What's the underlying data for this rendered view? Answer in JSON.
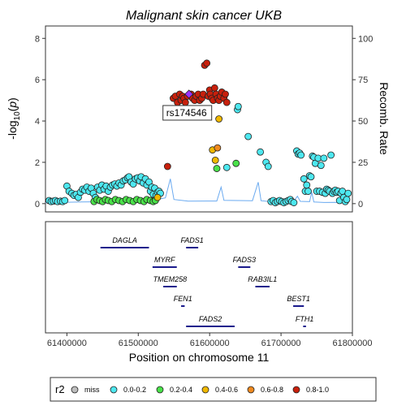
{
  "chart_data": {
    "type": "scatter",
    "title": "Malignant skin cancer UKB",
    "y_left_label": "-log10(p)",
    "y_right_label": "Recomb. Rate",
    "xlabel": "Position on chromosome 11",
    "xlim": [
      61370000,
      61800000
    ],
    "ylim": [
      -0.4,
      8.6
    ],
    "y_left_ticks": [
      "0",
      "2",
      "4",
      "6",
      "8"
    ],
    "y_right_ticks": [
      "0",
      "25",
      "50",
      "75",
      "100"
    ],
    "x_ticks": [
      "61400000",
      "61500000",
      "61600000",
      "61700000",
      "61800000"
    ],
    "lead_snp": {
      "label": "rs174546",
      "x": 61571000,
      "y": 5.3
    },
    "r2_colors": {
      "miss": "#bdbdbd",
      "0.0-0.2": "#4de8f0",
      "0.2-0.4": "#4ae24a",
      "0.4-0.6": "#f0b800",
      "0.6-0.8": "#f08a20",
      "0.8-1.0": "#c8200c",
      "lead": "#9b30ff"
    },
    "series": [
      {
        "name": "0.8-1.0",
        "points": [
          [
            61541000,
            1.8
          ],
          [
            61549000,
            5.1
          ],
          [
            61552000,
            5.2
          ],
          [
            61555000,
            4.9
          ],
          [
            61558000,
            5.3
          ],
          [
            61560000,
            5.0
          ],
          [
            61562000,
            5.2
          ],
          [
            61564000,
            5.1
          ],
          [
            61566000,
            4.9
          ],
          [
            61569000,
            5.2
          ],
          [
            61574000,
            5.3
          ],
          [
            61576000,
            5.1
          ],
          [
            61579000,
            5.0
          ],
          [
            61581000,
            5.2
          ],
          [
            61584000,
            5.3
          ],
          [
            61586000,
            5.0
          ],
          [
            61589000,
            5.1
          ],
          [
            61591000,
            5.3
          ],
          [
            61593000,
            6.7
          ],
          [
            61596000,
            6.8
          ],
          [
            61598000,
            5.2
          ],
          [
            61600000,
            5.5
          ],
          [
            61601000,
            5.3
          ],
          [
            61603000,
            5.1
          ],
          [
            61605000,
            5.0
          ],
          [
            61607000,
            5.6
          ],
          [
            61609000,
            5.3
          ],
          [
            61611000,
            5.1
          ],
          [
            61613000,
            5.0
          ],
          [
            61615000,
            5.2
          ],
          [
            61617000,
            5.4
          ],
          [
            61620000,
            5.1
          ],
          [
            61622000,
            5.3
          ],
          [
            61624000,
            4.9
          ]
        ]
      },
      {
        "name": "0.6-0.8",
        "points": [
          [
            61611000,
            2.7
          ]
        ]
      },
      {
        "name": "0.4-0.6",
        "points": [
          [
            61604000,
            2.6
          ],
          [
            61608000,
            2.1
          ],
          [
            61613000,
            4.1
          ],
          [
            61527000,
            0.3
          ]
        ]
      },
      {
        "name": "0.2-0.4",
        "points": [
          [
            61438000,
            0.1
          ],
          [
            61442000,
            0.2
          ],
          [
            61446000,
            0.15
          ],
          [
            61450000,
            0.1
          ],
          [
            61454000,
            0.2
          ],
          [
            61458000,
            0.15
          ],
          [
            61463000,
            0.1
          ],
          [
            61468000,
            0.2
          ],
          [
            61473000,
            0.15
          ],
          [
            61478000,
            0.1
          ],
          [
            61483000,
            0.2
          ],
          [
            61488000,
            0.15
          ],
          [
            61493000,
            0.1
          ],
          [
            61498000,
            0.2
          ],
          [
            61503000,
            0.15
          ],
          [
            61508000,
            0.1
          ],
          [
            61512000,
            0.2
          ],
          [
            61517000,
            0.15
          ],
          [
            61521000,
            0.1
          ],
          [
            61524000,
            0.15
          ],
          [
            61637000,
            1.95
          ],
          [
            61610000,
            1.7
          ]
        ]
      },
      {
        "name": "0.0-0.2",
        "points": [
          [
            61375000,
            0.15
          ],
          [
            61378000,
            0.1
          ],
          [
            61381000,
            0.12
          ],
          [
            61384000,
            0.15
          ],
          [
            61387000,
            0.1
          ],
          [
            61391000,
            0.12
          ],
          [
            61394000,
            0.1
          ],
          [
            61397000,
            0.15
          ],
          [
            61400000,
            0.85
          ],
          [
            61403000,
            0.6
          ],
          [
            61407000,
            0.5
          ],
          [
            61410000,
            0.4
          ],
          [
            61413000,
            0.45
          ],
          [
            61416000,
            0.3
          ],
          [
            61419000,
            0.55
          ],
          [
            61422000,
            0.7
          ],
          [
            61425000,
            0.65
          ],
          [
            61428000,
            0.8
          ],
          [
            61431000,
            0.6
          ],
          [
            61434000,
            0.75
          ],
          [
            61437000,
            0.5
          ],
          [
            61440000,
            0.3
          ],
          [
            61443000,
            0.8
          ],
          [
            61446000,
            0.65
          ],
          [
            61449000,
            0.9
          ],
          [
            61452000,
            0.7
          ],
          [
            61455000,
            0.85
          ],
          [
            61458000,
            0.6
          ],
          [
            61461000,
            0.8
          ],
          [
            61464000,
            0.9
          ],
          [
            61467000,
            0.95
          ],
          [
            61470000,
            0.85
          ],
          [
            61473000,
            1.0
          ],
          [
            61476000,
            0.9
          ],
          [
            61479000,
            1.1
          ],
          [
            61482000,
            1.15
          ],
          [
            61485000,
            1.25
          ],
          [
            61487000,
            1.3
          ],
          [
            61490000,
            1.05
          ],
          [
            61493000,
            0.95
          ],
          [
            61496000,
            1.2
          ],
          [
            61499000,
            1.25
          ],
          [
            61502000,
            1.1
          ],
          [
            61504000,
            1.3
          ],
          [
            61507000,
            1.0
          ],
          [
            61510000,
            1.2
          ],
          [
            61512000,
            0.9
          ],
          [
            61515000,
            1.05
          ],
          [
            61517000,
            0.6
          ],
          [
            61519000,
            0.8
          ],
          [
            61521000,
            0.45
          ],
          [
            61523000,
            0.75
          ],
          [
            61525000,
            0.4
          ],
          [
            61527000,
            0.55
          ],
          [
            61529000,
            0.6
          ],
          [
            61531000,
            0.5
          ],
          [
            61624000,
            1.75
          ],
          [
            61639000,
            4.55
          ],
          [
            61640000,
            4.7
          ],
          [
            61654000,
            3.25
          ],
          [
            61671000,
            2.5
          ],
          [
            61679000,
            2.0
          ],
          [
            61682000,
            1.8
          ],
          [
            61686000,
            0.1
          ],
          [
            61689000,
            0.15
          ],
          [
            61692000,
            0.05
          ],
          [
            61695000,
            0.1
          ],
          [
            61698000,
            0.15
          ],
          [
            61701000,
            0.1
          ],
          [
            61704000,
            0.05
          ],
          [
            61707000,
            0.1
          ],
          [
            61710000,
            0.15
          ],
          [
            61713000,
            0.2
          ],
          [
            61715000,
            0.1
          ],
          [
            61718000,
            0.05
          ],
          [
            61722000,
            2.55
          ],
          [
            61724000,
            2.4
          ],
          [
            61726000,
            2.45
          ],
          [
            61728000,
            2.35
          ],
          [
            61732000,
            1.2
          ],
          [
            61734000,
            0.6
          ],
          [
            61736000,
            0.9
          ],
          [
            61738000,
            0.6
          ],
          [
            61740000,
            1.35
          ],
          [
            61742000,
            1.3
          ],
          [
            61744000,
            2.3
          ],
          [
            61746000,
            2.25
          ],
          [
            61748000,
            1.95
          ],
          [
            61750000,
            0.6
          ],
          [
            61752000,
            2.2
          ],
          [
            61754000,
            0.6
          ],
          [
            61756000,
            1.85
          ],
          [
            61758000,
            0.55
          ],
          [
            61760000,
            2.2
          ],
          [
            61762000,
            0.5
          ],
          [
            61764000,
            0.7
          ],
          [
            61766000,
            0.65
          ],
          [
            61768000,
            0.6
          ],
          [
            61770000,
            2.35
          ],
          [
            61772000,
            0.5
          ],
          [
            61774000,
            0.6
          ],
          [
            61776000,
            0.65
          ],
          [
            61778000,
            0.55
          ],
          [
            61780000,
            0.6
          ],
          [
            61782000,
            0.15
          ],
          [
            61784000,
            0.5
          ],
          [
            61786000,
            0.6
          ],
          [
            61788000,
            0.3
          ],
          [
            61790000,
            0.1
          ],
          [
            61792000,
            0.2
          ],
          [
            61794000,
            0.5
          ]
        ]
      }
    ],
    "recomb_rate": [
      [
        61370000,
        0.5
      ],
      [
        61395000,
        0.8
      ],
      [
        61420000,
        1.0
      ],
      [
        61460000,
        1.2
      ],
      [
        61500000,
        1.5
      ],
      [
        61520000,
        2.0
      ],
      [
        61538000,
        3.5
      ],
      [
        61545000,
        15
      ],
      [
        61550000,
        2.5
      ],
      [
        61570000,
        1.5
      ],
      [
        61610000,
        1.6
      ],
      [
        61616000,
        10
      ],
      [
        61620000,
        2.0
      ],
      [
        61660000,
        1.8
      ],
      [
        61668000,
        13
      ],
      [
        61672000,
        1.8
      ],
      [
        61685000,
        1.2
      ],
      [
        61700000,
        2.0
      ],
      [
        61718000,
        1.5
      ],
      [
        61723000,
        4.5
      ],
      [
        61727000,
        1.4
      ],
      [
        61740000,
        1.2
      ],
      [
        61743000,
        7.0
      ],
      [
        61746000,
        1.0
      ],
      [
        61760000,
        0.7
      ],
      [
        61775000,
        0.8
      ],
      [
        61790000,
        0.5
      ]
    ],
    "genes": [
      {
        "name": "DAGLA",
        "start": 61447000,
        "end": 61515000,
        "row": 0
      },
      {
        "name": "FADS1",
        "start": 61567000,
        "end": 61584000,
        "row": 0
      },
      {
        "name": "MYRF",
        "start": 61520000,
        "end": 61554000,
        "row": 1
      },
      {
        "name": "FADS3",
        "start": 61640000,
        "end": 61657000,
        "row": 1
      },
      {
        "name": "TMEM258",
        "start": 61535000,
        "end": 61554000,
        "row": 2
      },
      {
        "name": "RAB3IL1",
        "start": 61664000,
        "end": 61684000,
        "row": 2
      },
      {
        "name": "FEN1",
        "start": 61560000,
        "end": 61565000,
        "row": 3
      },
      {
        "name": "BEST1",
        "start": 61717000,
        "end": 61732000,
        "row": 3
      },
      {
        "name": "FADS2",
        "start": 61567000,
        "end": 61635000,
        "row": 4
      },
      {
        "name": "FTH1",
        "start": 61731000,
        "end": 61735000,
        "row": 4
      }
    ],
    "legend": {
      "title": "r2",
      "items": [
        {
          "label": "miss",
          "color": "#bdbdbd"
        },
        {
          "label": "0.0-0.2",
          "color": "#4de8f0"
        },
        {
          "label": "0.2-0.4",
          "color": "#4ae24a"
        },
        {
          "label": "0.4-0.6",
          "color": "#f0b800"
        },
        {
          "label": "0.6-0.8",
          "color": "#f08a20"
        },
        {
          "label": "0.8-1.0",
          "color": "#c8200c"
        }
      ]
    },
    "recomb_line_color": "#6aaaf0",
    "gene_line_color": "#1a1a8c"
  }
}
